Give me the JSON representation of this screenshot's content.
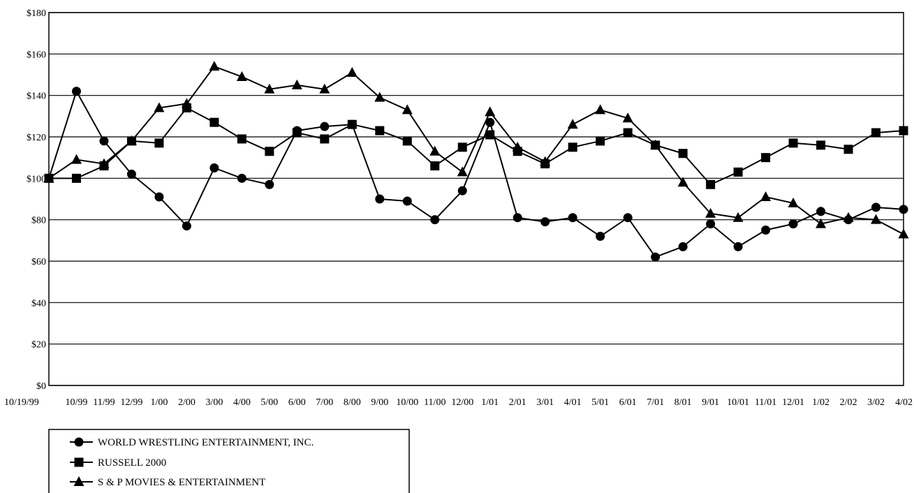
{
  "chart_data": {
    "type": "line",
    "title": "",
    "xlabel": "",
    "ylabel": "",
    "ylim": [
      0,
      180
    ],
    "yticks": [
      0,
      20,
      40,
      60,
      80,
      100,
      120,
      140,
      160,
      180
    ],
    "ytick_labels": [
      "$0",
      "$20",
      "$40",
      "$60",
      "$80",
      "$100",
      "$120",
      "$140",
      "$160",
      "$180"
    ],
    "grid": "horizontal",
    "legend_position": "bottom-left",
    "categories": [
      "10/19/99",
      "10/99",
      "11/99",
      "12/99",
      "1/00",
      "2/00",
      "3/00",
      "4/00",
      "5/00",
      "6/00",
      "7/00",
      "8/00",
      "9/00",
      "10/00",
      "11/00",
      "12/00",
      "1/01",
      "2/01",
      "3/01",
      "4/01",
      "5/01",
      "6/01",
      "7/01",
      "8/01",
      "9/01",
      "10/01",
      "11/01",
      "12/01",
      "1/02",
      "2/02",
      "3/02",
      "4/02"
    ],
    "series": [
      {
        "name": "WORLD WRESTLING ENTERTAINMENT, INC.",
        "marker": "circle",
        "values": [
          100,
          142,
          118,
          102,
          91,
          77,
          105,
          100,
          97,
          123,
          125,
          126,
          90,
          89,
          80,
          94,
          127,
          81,
          79,
          81,
          72,
          81,
          62,
          67,
          78,
          67,
          75,
          78,
          84,
          80,
          86,
          85
        ]
      },
      {
        "name": "RUSSELL 2000",
        "marker": "square",
        "values": [
          100,
          100,
          106,
          118,
          117,
          134,
          127,
          119,
          113,
          122,
          119,
          126,
          123,
          118,
          106,
          115,
          121,
          113,
          107,
          115,
          118,
          122,
          116,
          112,
          97,
          103,
          110,
          117,
          116,
          114,
          122,
          123
        ]
      },
      {
        "name": "S & P MOVIES & ENTERTAINMENT",
        "marker": "triangle",
        "values": [
          100,
          109,
          107,
          118,
          134,
          136,
          154,
          149,
          143,
          145,
          143,
          151,
          139,
          133,
          113,
          103,
          132,
          115,
          108,
          126,
          133,
          129,
          116,
          98,
          83,
          81,
          91,
          88,
          78,
          81,
          80,
          73
        ]
      }
    ]
  }
}
